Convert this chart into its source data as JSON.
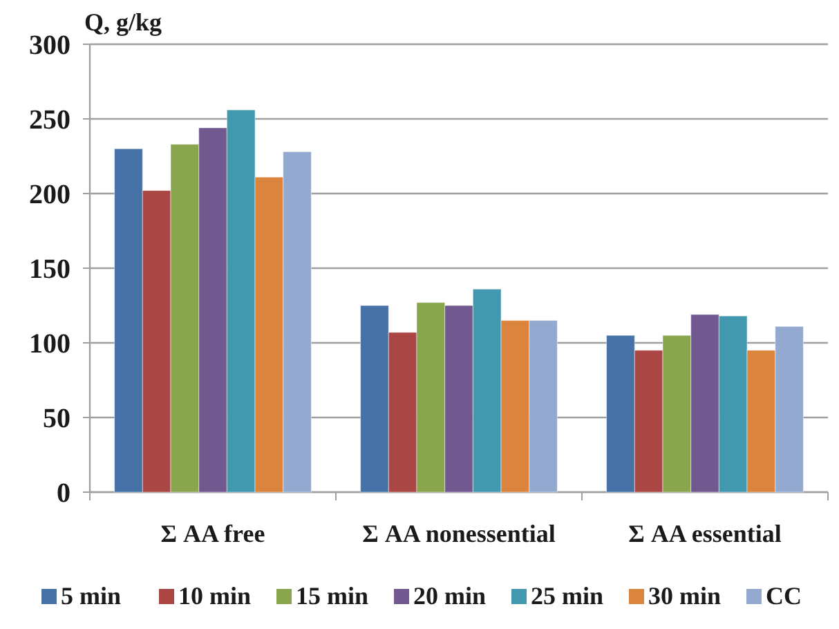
{
  "chart_data": {
    "type": "bar",
    "ylabel": "Q, g/kg",
    "categories": [
      "Σ AA free",
      "Σ AA nonessential",
      "Σ AA essential"
    ],
    "series": [
      {
        "name": "5 min",
        "color": "#4672a8",
        "values": [
          230,
          125,
          105
        ]
      },
      {
        "name": "10 min",
        "color": "#aa4644",
        "values": [
          202,
          107,
          95
        ]
      },
      {
        "name": "15 min",
        "color": "#89a54e",
        "values": [
          233,
          127,
          105
        ]
      },
      {
        "name": "20 min",
        "color": "#71588f",
        "values": [
          244,
          125,
          119
        ]
      },
      {
        "name": "25 min",
        "color": "#4198af",
        "values": [
          256,
          136,
          118
        ]
      },
      {
        "name": "30 min",
        "color": "#db843d",
        "values": [
          211,
          115,
          95
        ]
      },
      {
        "name": "CC",
        "color": "#93a9cf",
        "values": [
          228,
          115,
          111
        ]
      }
    ],
    "ylim": [
      0,
      300
    ],
    "yticks": [
      0,
      50,
      100,
      150,
      200,
      250,
      300
    ],
    "grid": "y",
    "legend": "bottom"
  }
}
